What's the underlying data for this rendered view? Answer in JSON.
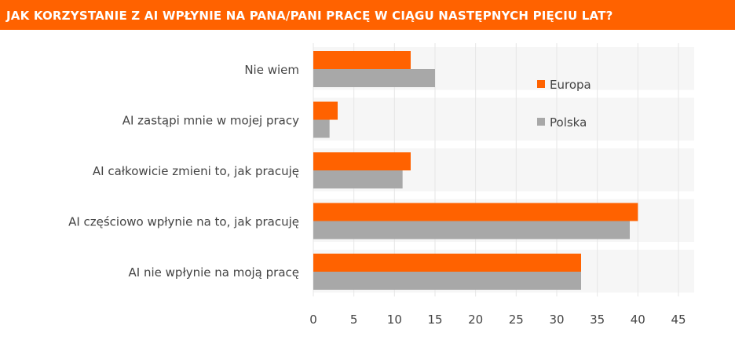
{
  "header": {
    "title": "JAK KORZYSTANIE Z AI WPŁYNIE NA PANA/PANI PRACĘ W CIĄGU NASTĘPNYCH PIĘCIU LAT?"
  },
  "chart_data": {
    "type": "bar",
    "orientation": "horizontal",
    "categories": [
      "Nie wiem",
      "AI zastąpi mnie w mojej pracy",
      "AI całkowicie zmieni to, jak pracuję",
      "AI częściowo wpłynie na to, jak pracuję",
      "AI nie wpłynie na moją pracę"
    ],
    "series": [
      {
        "name": "Europa",
        "color": "#FF6200",
        "values": [
          12,
          3,
          12,
          40,
          33
        ]
      },
      {
        "name": "Polska",
        "color": "#A8A8A8",
        "values": [
          15,
          2,
          11,
          39,
          33
        ]
      }
    ],
    "xlim": [
      0,
      45
    ],
    "xticks": [
      "0",
      "5",
      "10",
      "15",
      "20",
      "25",
      "30",
      "35",
      "40",
      "45"
    ],
    "grid": true,
    "legend_position": "top-right"
  }
}
